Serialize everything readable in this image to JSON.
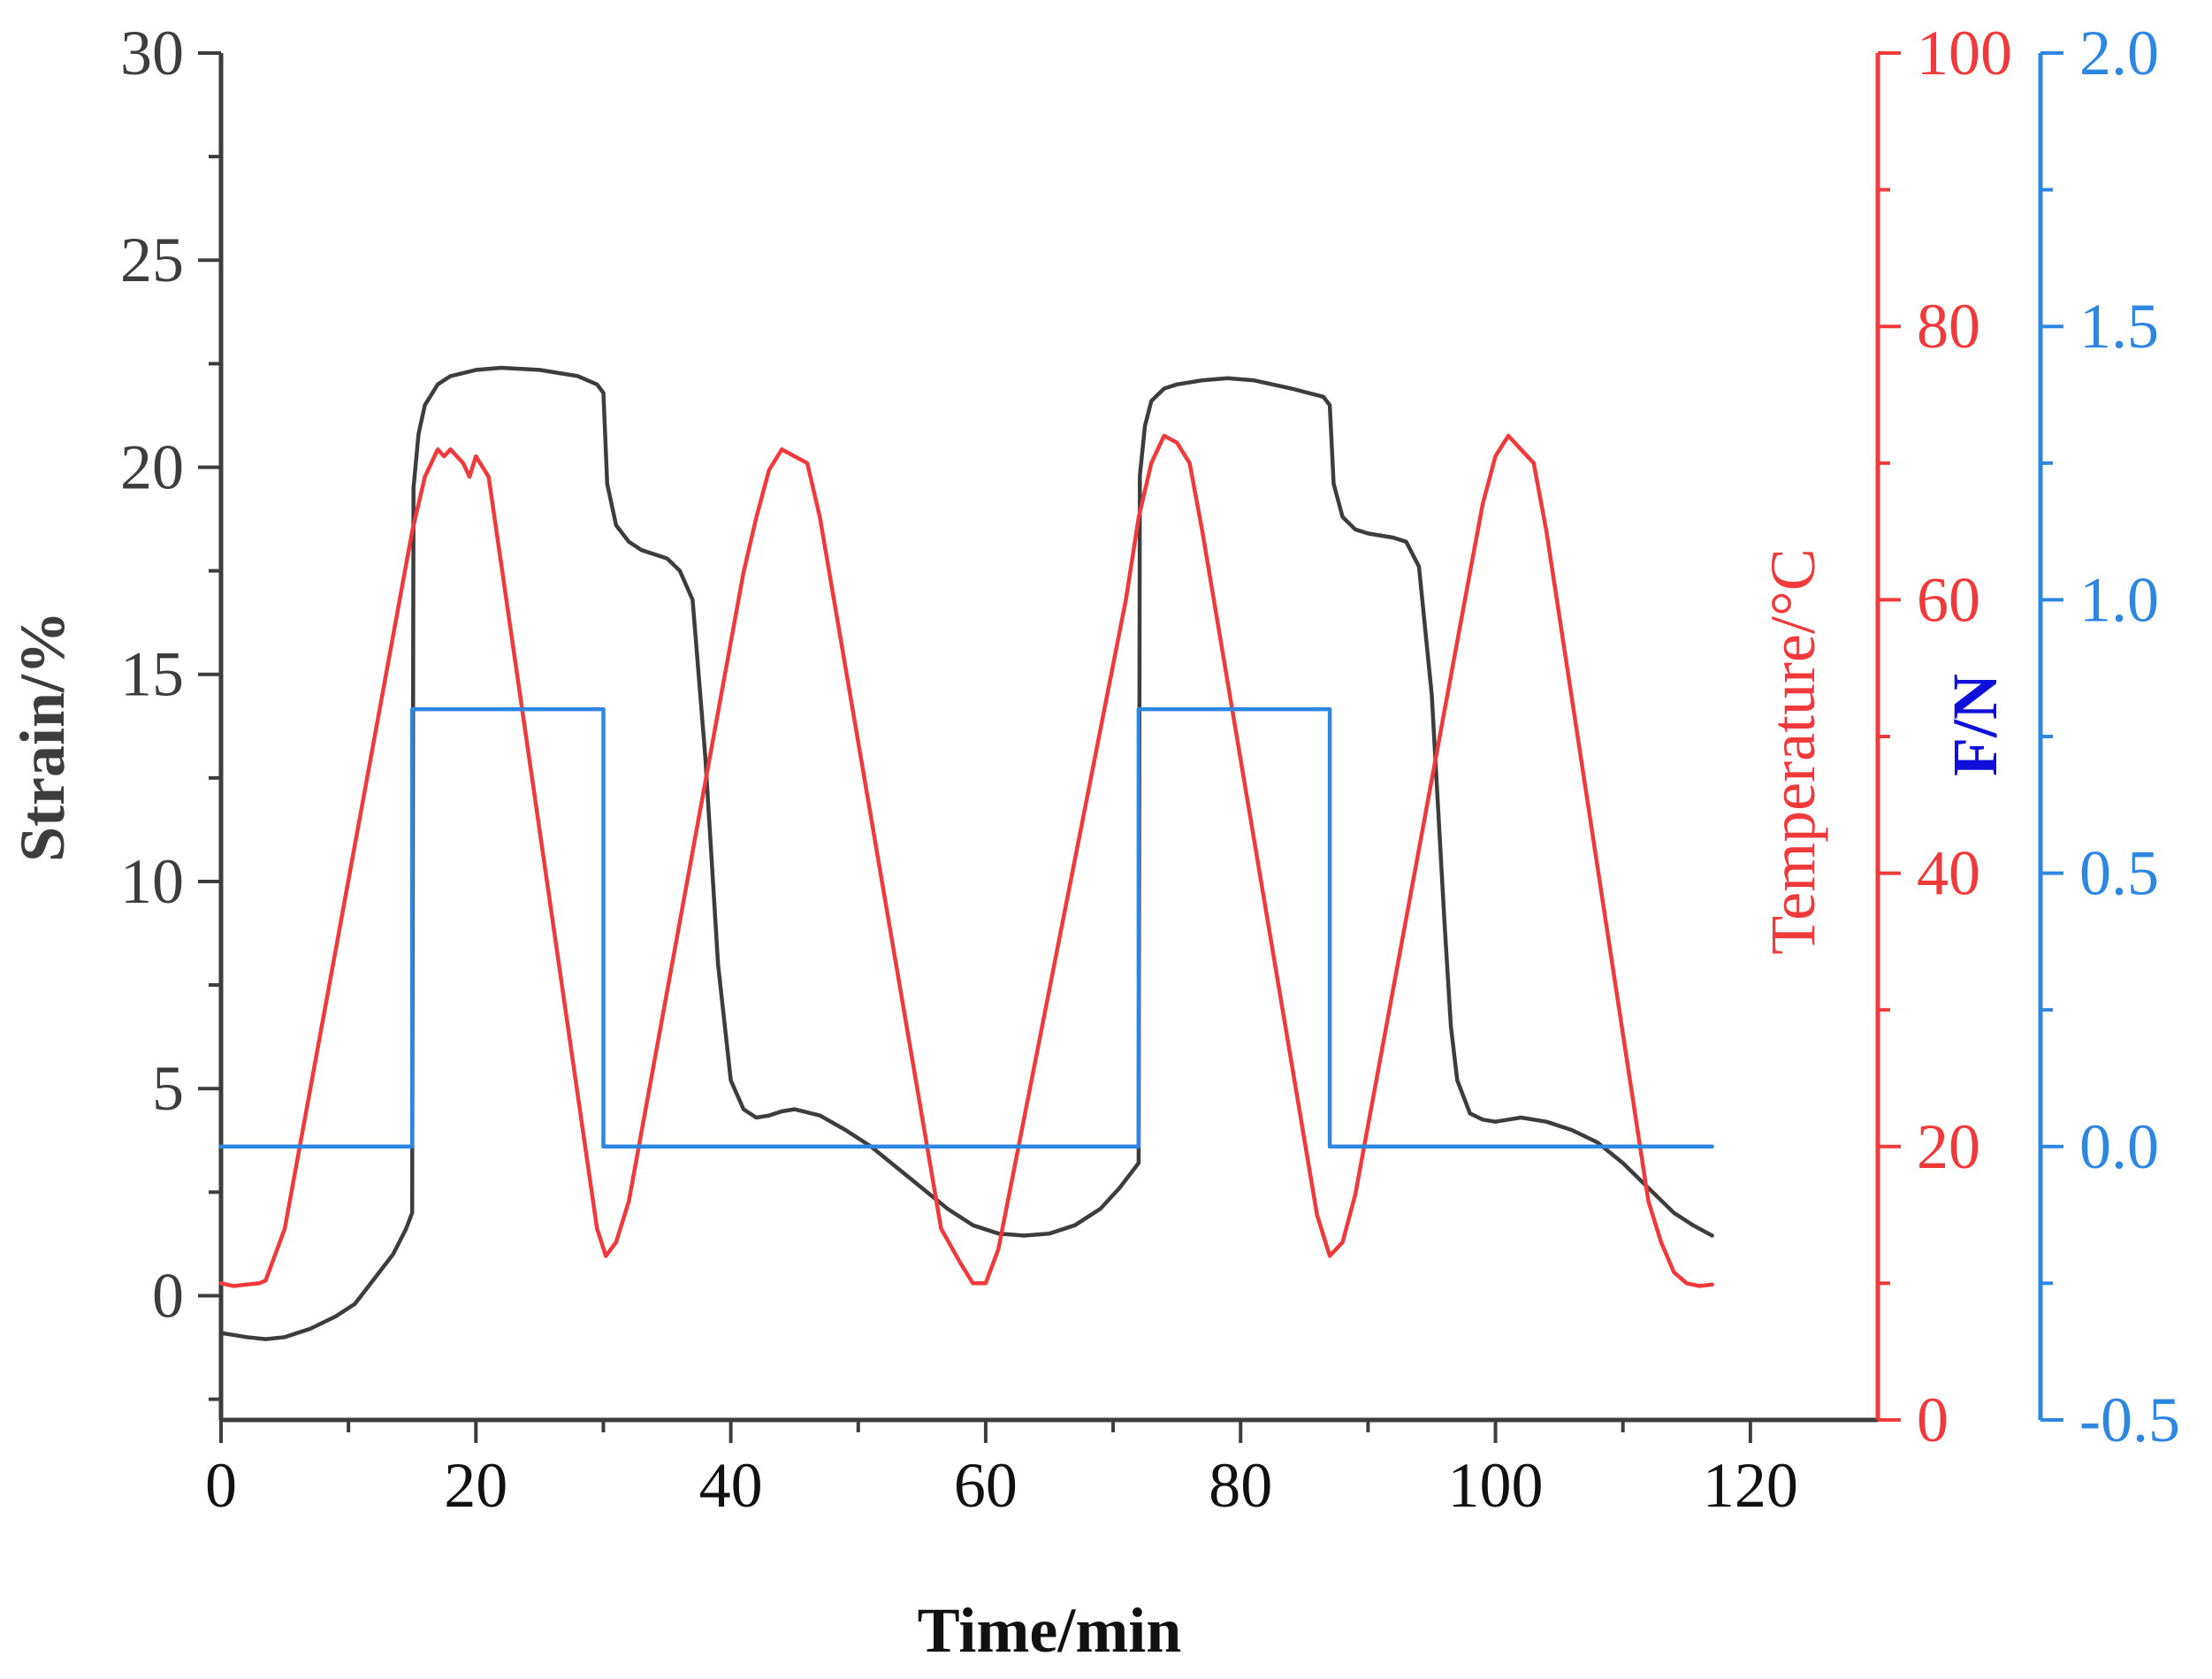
{
  "chart_data": {
    "type": "line",
    "title": "",
    "xlabel": "Time/min",
    "xlim": [
      0,
      130
    ],
    "x_ticks": [
      "0",
      "20",
      "40",
      "60",
      "80",
      "100",
      "120"
    ],
    "x_tick_values": [
      0,
      20,
      40,
      60,
      80,
      100,
      120
    ],
    "axes": {
      "left": {
        "label": "Strain/%",
        "ylim": [
          -3,
          30
        ],
        "ticks": [
          "0",
          "5",
          "10",
          "15",
          "20",
          "25",
          "30"
        ],
        "tick_values": [
          0,
          5,
          10,
          15,
          20,
          25,
          30
        ],
        "color": "#3d3d3d"
      },
      "right1": {
        "label": "Temperature/°C",
        "ylim": [
          0,
          100
        ],
        "ticks": [
          "0",
          "20",
          "40",
          "60",
          "80",
          "100"
        ],
        "tick_values": [
          0,
          20,
          40,
          60,
          80,
          100
        ],
        "color": "#f0393b"
      },
      "right2": {
        "label": "F/N",
        "ylim": [
          -0.5,
          2.0
        ],
        "ticks": [
          "-0.5",
          "0.0",
          "0.5",
          "1.0",
          "1.5",
          "2.0"
        ],
        "tick_values": [
          -0.5,
          0.0,
          0.5,
          1.0,
          1.5,
          2.0
        ],
        "color": "#2d86e0",
        "label_color": "#1010d8"
      }
    },
    "series": [
      {
        "name": "Strain",
        "axis": "left",
        "color": "#3d3d3d",
        "x": [
          0,
          2,
          3.5,
          5,
          7,
          9,
          10.5,
          12,
          13.5,
          14.5,
          15,
          15.1,
          15.5,
          16,
          17,
          18,
          20,
          22,
          25,
          28,
          29.5,
          30,
          30.3,
          31,
          32,
          33,
          35,
          36,
          37,
          38,
          39,
          40,
          41,
          42,
          43,
          44,
          45,
          47,
          49,
          51,
          53,
          55,
          57,
          59,
          61,
          63,
          65,
          67,
          69,
          70.5,
          72,
          72.1,
          72.5,
          73,
          74,
          75,
          77,
          79,
          81,
          84,
          86.5,
          87,
          87.3,
          88,
          89,
          90,
          92,
          93,
          94,
          95,
          96,
          96.5,
          97,
          98,
          99,
          100,
          101,
          102,
          104,
          106,
          108,
          110,
          112,
          114,
          115.5,
          117
        ],
        "values": [
          -0.9,
          -1.0,
          -1.05,
          -1.0,
          -0.8,
          -0.5,
          -0.2,
          0.4,
          1.0,
          1.6,
          2.0,
          19.5,
          20.8,
          21.5,
          22.0,
          22.2,
          22.35,
          22.4,
          22.35,
          22.2,
          22.0,
          21.8,
          19.6,
          18.6,
          18.2,
          18.0,
          17.8,
          17.5,
          16.8,
          13.0,
          8.0,
          5.2,
          4.5,
          4.3,
          4.35,
          4.45,
          4.5,
          4.35,
          4.0,
          3.6,
          3.1,
          2.6,
          2.1,
          1.7,
          1.5,
          1.45,
          1.5,
          1.7,
          2.1,
          2.6,
          3.2,
          19.8,
          21.0,
          21.6,
          21.9,
          22.0,
          22.1,
          22.15,
          22.1,
          21.9,
          21.7,
          21.5,
          19.6,
          18.8,
          18.5,
          18.4,
          18.3,
          18.2,
          17.6,
          14.5,
          9.0,
          6.5,
          5.2,
          4.4,
          4.25,
          4.2,
          4.25,
          4.3,
          4.2,
          4.0,
          3.7,
          3.2,
          2.6,
          2.0,
          1.7,
          1.45
        ]
      },
      {
        "name": "Temperature",
        "axis": "right1",
        "color": "#f0393b",
        "x": [
          0,
          1,
          2,
          3,
          3.5,
          5,
          15,
          16,
          17,
          17.5,
          18,
          19,
          19.5,
          20,
          21,
          29.5,
          30.2,
          31,
          32,
          41,
          42,
          43,
          44,
          45,
          46,
          47,
          56.5,
          58,
          59,
          60,
          61,
          71,
          72,
          73,
          74,
          75,
          76,
          77,
          86,
          87,
          88,
          89,
          98,
          99,
          100,
          101,
          102,
          103,
          104,
          112,
          113,
          114,
          115,
          116,
          117
        ],
        "values": [
          10.0,
          9.8,
          9.9,
          10.0,
          10.2,
          14.0,
          65.0,
          69.0,
          71.0,
          70.5,
          71.0,
          70.0,
          69.0,
          70.5,
          69.0,
          14.0,
          12.0,
          13.0,
          16.0,
          62.0,
          66.0,
          69.5,
          71.0,
          70.5,
          70.0,
          66.0,
          14.0,
          11.5,
          10.0,
          10.0,
          12.5,
          60.0,
          66.0,
          70.0,
          72.0,
          71.5,
          70.0,
          65.0,
          15.0,
          12.0,
          13.0,
          16.5,
          62.0,
          67.0,
          70.5,
          72.0,
          71.0,
          70.0,
          65.0,
          16.0,
          13.0,
          10.8,
          10.0,
          9.8,
          9.9
        ]
      },
      {
        "name": "F",
        "axis": "right2",
        "color": "#2d86e0",
        "x": [
          0,
          15,
          15,
          30,
          30,
          72,
          72,
          87,
          87,
          117
        ],
        "values": [
          0.0,
          0.0,
          0.8,
          0.8,
          0.0,
          0.0,
          0.8,
          0.8,
          0.0,
          0.0
        ]
      }
    ],
    "grid": false,
    "legend": "none"
  }
}
